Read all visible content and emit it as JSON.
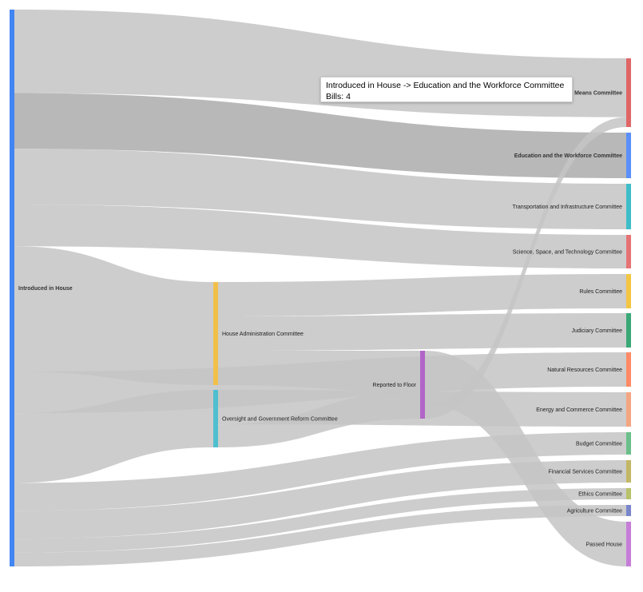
{
  "chart_data": {
    "type": "sankey",
    "value_name": "Bills",
    "nodes": [
      {
        "id": "introduced",
        "label": "Introduced in House",
        "color": "#4285f4"
      },
      {
        "id": "house_admin",
        "label": "House Administration Committee",
        "color": "#f1c04b"
      },
      {
        "id": "oversight",
        "label": "Oversight and Government Reform Committee",
        "color": "#4fbfd0"
      },
      {
        "id": "reported",
        "label": "Reported to Floor",
        "color": "#b264c8"
      },
      {
        "id": "ways_means",
        "label": "Ways and Means Committee",
        "color": "#e06666"
      },
      {
        "id": "education",
        "label": "Education and the Workforce Committee",
        "color": "#5b8ff9"
      },
      {
        "id": "transport",
        "label": "Transportation and Infrastructure Committee",
        "color": "#3ebdc9"
      },
      {
        "id": "science",
        "label": "Science, Space, and Technology Committee",
        "color": "#e57373"
      },
      {
        "id": "rules",
        "label": "Rules Committee",
        "color": "#f4c542"
      },
      {
        "id": "judiciary",
        "label": "Judiciary Committee",
        "color": "#3aa876"
      },
      {
        "id": "natural",
        "label": "Natural Resources Committee",
        "color": "#ff8a65"
      },
      {
        "id": "energy",
        "label": "Energy and Commerce Committee",
        "color": "#f4a582"
      },
      {
        "id": "budget",
        "label": "Budget Committee",
        "color": "#6abf8a"
      },
      {
        "id": "financial",
        "label": "Financial Services Committee",
        "color": "#c2b766"
      },
      {
        "id": "ethics",
        "label": "Ethics Committee",
        "color": "#b8c26a"
      },
      {
        "id": "agriculture",
        "label": "Agriculture Committee",
        "color": "#7986cb"
      },
      {
        "id": "passed",
        "label": "Passed House",
        "color": "#c77dd8"
      }
    ],
    "links": [
      {
        "source": "introduced",
        "target": "ways_means",
        "value": 6
      },
      {
        "source": "introduced",
        "target": "education",
        "value": 4
      },
      {
        "source": "introduced",
        "target": "transport",
        "value": 4
      },
      {
        "source": "introduced",
        "target": "science",
        "value": 3
      },
      {
        "source": "introduced",
        "target": "house_admin",
        "value": 9
      },
      {
        "source": "introduced",
        "target": "natural",
        "value": 3
      },
      {
        "source": "introduced",
        "target": "oversight",
        "value": 5
      },
      {
        "source": "introduced",
        "target": "budget",
        "value": 2
      },
      {
        "source": "introduced",
        "target": "financial",
        "value": 2
      },
      {
        "source": "introduced",
        "target": "ethics",
        "value": 1
      },
      {
        "source": "introduced",
        "target": "agriculture",
        "value": 1
      },
      {
        "source": "house_admin",
        "target": "rules",
        "value": 3
      },
      {
        "source": "house_admin",
        "target": "judiciary",
        "value": 3
      },
      {
        "source": "house_admin",
        "target": "reported",
        "value": 3
      },
      {
        "source": "oversight",
        "target": "energy",
        "value": 3
      },
      {
        "source": "oversight",
        "target": "reported",
        "value": 2
      },
      {
        "source": "reported",
        "target": "passed",
        "value": 4
      },
      {
        "source": "reported",
        "target": "ways_means",
        "value": 1
      }
    ],
    "tooltip": {
      "title": "Introduced in House -> Education and the Workforce Committee",
      "value_text": "Bills: 4"
    }
  }
}
